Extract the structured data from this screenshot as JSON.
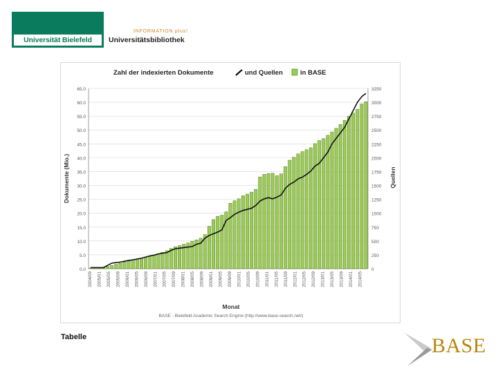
{
  "header": {
    "university": "Universität Bielefeld",
    "library_kicker": "INFORMATION.plus!",
    "library_name": "Universitätsbibliothek"
  },
  "footer": {
    "tabelle_label": "Tabelle",
    "base_logo": "BASE"
  },
  "colors": {
    "uni_green": "#0b7b5e",
    "bar_fill": "#9ccc54",
    "bar_stroke": "#4e7a22",
    "line": "#111111",
    "base_gold": "#b8860b"
  },
  "chart_data": {
    "type": "bar",
    "title_parts": [
      "Zahl der indexierten Dokumente",
      "und Quellen",
      "in BASE"
    ],
    "xlabel": "Monat",
    "ylabel": "Dokumente (Mio.)",
    "y2label": "Quellen",
    "source": "BASE - Bielefeld Academic Search Engine (http://www.base-search.net/)",
    "ylim": [
      0,
      65
    ],
    "y2lim": [
      0,
      3250
    ],
    "yticks": [
      "0.0",
      "5.0",
      "10.0",
      "15.0",
      "20.0",
      "25.0",
      "30.0",
      "35.0",
      "40.0",
      "45.0",
      "50.0",
      "55.0",
      "60.0",
      "65.0"
    ],
    "y2ticks": [
      "0",
      "250",
      "500",
      "750",
      "1000",
      "1250",
      "1500",
      "1750",
      "2000",
      "2250",
      "2500",
      "2750",
      "3000",
      "3250"
    ],
    "xticks": [
      "2004/09",
      "2005/01",
      "2005/05",
      "2005/09",
      "2006/01",
      "2006/05",
      "2006/09",
      "2007/01",
      "2007/05",
      "2007/09",
      "2008/01",
      "2008/05",
      "2008/09",
      "2009/01",
      "2009/05",
      "2009/09",
      "2010/01",
      "2010/05",
      "2010/09",
      "2011/01",
      "2011/05",
      "2011/09",
      "2012/01",
      "2012/05",
      "2012/09",
      "2013/01",
      "2013/05",
      "2013/09",
      "2014/01",
      "2014/05"
    ],
    "series": [
      {
        "name": "Dokumente",
        "kind": "bar",
        "values": [
          0.3,
          0.3,
          0.3,
          0.4,
          0.8,
          1.2,
          1.6,
          2.0,
          2.4,
          2.8,
          3.1,
          3.5,
          3.8,
          4.1,
          4.5,
          4.9,
          5.4,
          5.9,
          6.5,
          7.3,
          7.9,
          8.3,
          8.8,
          9.3,
          9.9,
          10.4,
          11.0,
          12.3,
          15.3,
          17.7,
          18.9,
          19.3,
          20.5,
          23.6,
          24.5,
          25.2,
          26.3,
          26.9,
          27.6,
          28.6,
          33.1,
          34.0,
          34.3,
          34.4,
          33.5,
          34.2,
          36.8,
          39.1,
          40.2,
          41.4,
          42.2,
          42.9,
          43.6,
          45.1,
          46.2,
          46.9,
          48.1,
          49.3,
          50.6,
          52.0,
          53.5,
          55.0,
          56.1,
          57.5,
          59.4,
          60.2
        ]
      },
      {
        "name": "Quellen",
        "kind": "line",
        "values": [
          20,
          20,
          20,
          20,
          60,
          100,
          110,
          120,
          135,
          150,
          160,
          175,
          190,
          210,
          230,
          245,
          265,
          280,
          290,
          330,
          360,
          370,
          380,
          390,
          400,
          440,
          460,
          550,
          600,
          630,
          660,
          700,
          870,
          920,
          980,
          1020,
          1050,
          1070,
          1090,
          1140,
          1220,
          1260,
          1280,
          1260,
          1290,
          1330,
          1450,
          1520,
          1560,
          1620,
          1650,
          1700,
          1760,
          1850,
          1900,
          2000,
          2100,
          2250,
          2350,
          2450,
          2550,
          2700,
          2850,
          3000,
          3100,
          3160
        ]
      }
    ]
  }
}
